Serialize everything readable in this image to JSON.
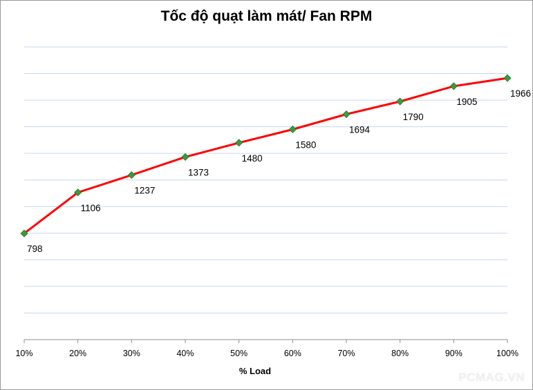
{
  "chart_data": {
    "type": "line",
    "title": "Tốc độ quạt làm mát/ Fan RPM",
    "xlabel": "% Load",
    "ylabel": "",
    "categories": [
      "10%",
      "20%",
      "30%",
      "40%",
      "50%",
      "60%",
      "70%",
      "80%",
      "90%",
      "100%"
    ],
    "series": [
      {
        "name": "Fan RPM",
        "values": [
          798,
          1106,
          1237,
          1373,
          1480,
          1580,
          1694,
          1790,
          1905,
          1966
        ],
        "line_color": "#ff0000",
        "marker_color": "#3c9a3c"
      }
    ],
    "ylim": [
      0,
      2200
    ],
    "grid": true,
    "data_labels": true,
    "legend": "none"
  },
  "watermark": "PCMAG.VN"
}
